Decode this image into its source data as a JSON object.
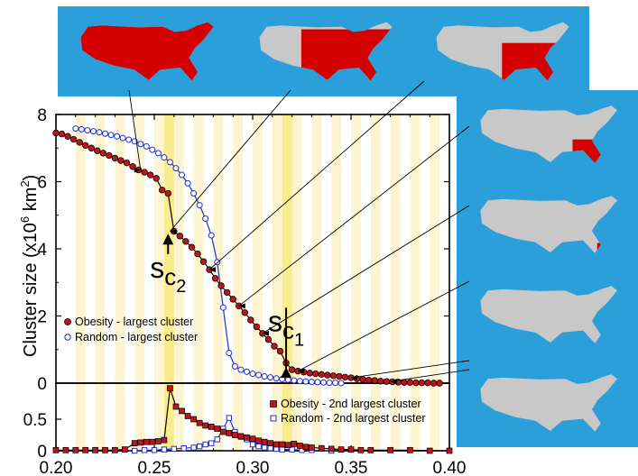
{
  "chart_data": [
    {
      "type": "scatter",
      "panel": "main",
      "ylabel": "Cluster size (x10",
      "ylabel_sup1": "6",
      "ylabel_mid": " km",
      "ylabel_sup2": "2",
      "ylabel_end": ")",
      "xlim": [
        0.2,
        0.4
      ],
      "ylim": [
        0,
        8
      ],
      "yticks": [
        "0",
        "2",
        "4",
        "6",
        "8"
      ],
      "highlight_bands": [
        [
          0.255,
          0.26
        ],
        [
          0.315,
          0.32
        ]
      ],
      "series": [
        {
          "name": "Obesity - largest cluster",
          "color": "#c0141a",
          "marker": "filled-circle",
          "x": [
            0.2,
            0.203,
            0.206,
            0.209,
            0.212,
            0.215,
            0.218,
            0.221,
            0.224,
            0.227,
            0.23,
            0.233,
            0.236,
            0.239,
            0.242,
            0.245,
            0.248,
            0.251,
            0.254,
            0.257,
            0.26,
            0.263,
            0.266,
            0.269,
            0.272,
            0.275,
            0.278,
            0.281,
            0.284,
            0.287,
            0.29,
            0.293,
            0.296,
            0.299,
            0.302,
            0.305,
            0.308,
            0.311,
            0.314,
            0.317,
            0.32,
            0.323,
            0.326,
            0.329,
            0.332,
            0.335,
            0.338,
            0.341,
            0.344,
            0.347,
            0.35,
            0.353,
            0.356,
            0.359,
            0.362,
            0.365,
            0.368,
            0.371,
            0.374,
            0.377,
            0.38,
            0.383,
            0.386,
            0.389,
            0.392,
            0.395
          ],
          "y": [
            7.45,
            7.42,
            7.35,
            7.26,
            7.17,
            7.08,
            7.0,
            6.92,
            6.85,
            6.78,
            6.7,
            6.63,
            6.56,
            6.45,
            6.35,
            6.28,
            6.2,
            6.1,
            5.75,
            5.65,
            4.52,
            4.38,
            4.22,
            4.05,
            3.85,
            3.62,
            3.38,
            3.12,
            2.9,
            2.7,
            2.5,
            2.3,
            2.1,
            1.88,
            1.68,
            1.48,
            1.3,
            1.1,
            0.95,
            0.6,
            0.4,
            0.36,
            0.33,
            0.3,
            0.28,
            0.26,
            0.24,
            0.22,
            0.2,
            0.18,
            0.16,
            0.13,
            0.11,
            0.09,
            0.08,
            0.06,
            0.05,
            0.04,
            0.03,
            0.02,
            0.02,
            0.01,
            0.01,
            0.01,
            0.0,
            0.0
          ]
        },
        {
          "name": "Random - largest cluster",
          "color": "#1f2fd6",
          "marker": "open-circle",
          "x": [
            0.21,
            0.213,
            0.216,
            0.219,
            0.222,
            0.225,
            0.228,
            0.231,
            0.234,
            0.237,
            0.24,
            0.243,
            0.246,
            0.249,
            0.252,
            0.255,
            0.258,
            0.261,
            0.264,
            0.267,
            0.27,
            0.273,
            0.276,
            0.279,
            0.282,
            0.285,
            0.288,
            0.291,
            0.294,
            0.297,
            0.3,
            0.303,
            0.306,
            0.309,
            0.312,
            0.315,
            0.318,
            0.321,
            0.324,
            0.327,
            0.33,
            0.333,
            0.336,
            0.339,
            0.342,
            0.345
          ],
          "y": [
            7.58,
            7.56,
            7.53,
            7.5,
            7.47,
            7.43,
            7.39,
            7.35,
            7.3,
            7.25,
            7.2,
            7.12,
            7.05,
            6.95,
            6.85,
            6.72,
            6.58,
            6.4,
            6.2,
            5.95,
            5.65,
            5.3,
            4.9,
            4.4,
            3.6,
            2.25,
            0.9,
            0.5,
            0.4,
            0.34,
            0.28,
            0.24,
            0.2,
            0.17,
            0.14,
            0.12,
            0.1,
            0.08,
            0.06,
            0.05,
            0.04,
            0.03,
            0.02,
            0.01,
            0.01,
            0.0
          ]
        }
      ],
      "annotations": [
        {
          "base": "s",
          "sub": "c",
          "subsub": "2",
          "x": 0.257,
          "y": 3.2
        },
        {
          "base": "s",
          "sub": "c",
          "subsub": "1",
          "x": 0.317,
          "y": 1.6
        }
      ]
    },
    {
      "type": "scatter",
      "panel": "bottom",
      "xlim": [
        0.2,
        0.4
      ],
      "ylim": [
        0,
        1.0
      ],
      "xticks": [
        "0.20",
        "0.25",
        "0.30",
        "0.35",
        "0.40"
      ],
      "yticks": [
        "0",
        "0.5"
      ],
      "series": [
        {
          "name": "Obesity - 2nd largest cluster",
          "color": "#c0141a",
          "marker": "filled-square",
          "x": [
            0.2,
            0.205,
            0.21,
            0.215,
            0.22,
            0.225,
            0.23,
            0.235,
            0.24,
            0.243,
            0.246,
            0.249,
            0.252,
            0.255,
            0.258,
            0.261,
            0.264,
            0.267,
            0.27,
            0.273,
            0.276,
            0.279,
            0.282,
            0.285,
            0.288,
            0.291,
            0.294,
            0.297,
            0.3,
            0.303,
            0.306,
            0.309,
            0.312,
            0.315,
            0.318,
            0.321,
            0.324,
            0.327,
            0.33,
            0.335,
            0.34,
            0.345,
            0.35,
            0.355,
            0.36,
            0.37,
            0.38,
            0.39,
            0.4
          ],
          "y": [
            0.01,
            0.01,
            0.01,
            0.01,
            0.01,
            0.01,
            0.01,
            0.02,
            0.12,
            0.13,
            0.14,
            0.14,
            0.15,
            0.17,
            0.99,
            0.7,
            0.63,
            0.55,
            0.5,
            0.44,
            0.4,
            0.38,
            0.35,
            0.3,
            0.28,
            0.25,
            0.23,
            0.21,
            0.19,
            0.16,
            0.14,
            0.12,
            0.1,
            0.1,
            0.09,
            0.11,
            0.08,
            0.06,
            0.05,
            0.04,
            0.03,
            0.02,
            0.02,
            0.01,
            0.01,
            0.01,
            0.01,
            0.0,
            0.0
          ]
        },
        {
          "name": "Random - 2nd largest cluster",
          "color": "#1f2fd6",
          "marker": "open-square",
          "x": [
            0.24,
            0.245,
            0.25,
            0.255,
            0.26,
            0.265,
            0.27,
            0.273,
            0.276,
            0.279,
            0.282,
            0.285,
            0.288,
            0.291,
            0.294,
            0.297,
            0.3,
            0.303,
            0.306,
            0.309,
            0.312,
            0.315,
            0.32,
            0.325,
            0.33,
            0.34
          ],
          "y": [
            0.0,
            0.01,
            0.01,
            0.02,
            0.03,
            0.04,
            0.05,
            0.07,
            0.1,
            0.12,
            0.18,
            0.35,
            0.52,
            0.3,
            0.22,
            0.18,
            0.1,
            0.07,
            0.05,
            0.04,
            0.03,
            0.02,
            0.02,
            0.01,
            0.01,
            0.0
          ]
        }
      ]
    }
  ],
  "map_panels": {
    "panel_colors": {
      "ocean": "#2a9fd9",
      "land": "#c8c8c8",
      "cluster": "#d40000"
    },
    "maps": [
      {
        "label": "largest cluster map 1",
        "fill_fraction": 0.9
      },
      {
        "label": "largest cluster map 2",
        "fill_fraction": 0.6
      },
      {
        "label": "largest cluster map 3",
        "fill_fraction": 0.45
      },
      {
        "label": "largest cluster map 4",
        "fill_fraction": 0.3
      },
      {
        "label": "largest cluster map 5",
        "fill_fraction": 0.15
      },
      {
        "label": "largest cluster map 6",
        "fill_fraction": 0.08
      },
      {
        "label": "largest cluster map 7",
        "fill_fraction": 0.03
      }
    ]
  }
}
